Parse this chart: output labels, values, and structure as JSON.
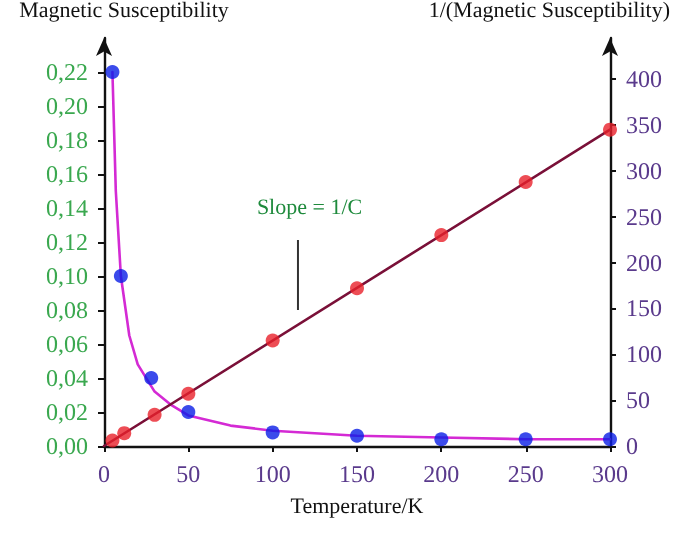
{
  "chart_data": {
    "type": "scatter",
    "xlabel": "Temperature/K",
    "ylabel": "Magnetic Susceptibility",
    "y2label": "1/(Magnetic Susceptibility)",
    "xlim": [
      0,
      300
    ],
    "xticks": [
      0,
      50,
      100,
      150,
      200,
      250,
      300
    ],
    "ylim": [
      0,
      0.24
    ],
    "yticks": [
      {
        "value": 0,
        "label": "0,00"
      },
      {
        "value": 0.02,
        "label": "0,02"
      },
      {
        "value": 0.04,
        "label": "0,04"
      },
      {
        "value": 0.06,
        "label": "0,06"
      },
      {
        "value": 0.08,
        "label": "0,08"
      },
      {
        "value": 0.1,
        "label": "0,10"
      },
      {
        "value": 0.12,
        "label": "0,12"
      },
      {
        "value": 0.14,
        "label": "0,14"
      },
      {
        "value": 0.16,
        "label": "0,16"
      },
      {
        "value": 0.18,
        "label": "0,18"
      },
      {
        "value": 0.2,
        "label": "0,20"
      },
      {
        "value": 0.22,
        "label": "0,22"
      }
    ],
    "y2lim": [
      0,
      445
    ],
    "y2ticks": [
      0,
      50,
      100,
      150,
      200,
      250,
      300,
      350,
      400
    ],
    "annotations": [
      "Slope = 1/C"
    ],
    "series": [
      {
        "type": "line",
        "marker": "none",
        "color": "#d42ad4",
        "x": [
          5,
          7,
          10,
          15,
          20,
          30,
          40,
          50,
          75,
          100,
          150,
          200,
          250,
          300
        ],
        "values": [
          0.22,
          0.15,
          0.1,
          0.065,
          0.048,
          0.032,
          0.024,
          0.018,
          0.012,
          0.009,
          0.006,
          0.005,
          0.004,
          0.004
        ]
      },
      {
        "type": "line",
        "marker": "none",
        "axis": "y2",
        "color": "#7a1038",
        "x": [
          0,
          300
        ],
        "values": [
          0,
          345
        ]
      },
      {
        "marker": "circle",
        "color": "#0a1ee6",
        "x": [
          5,
          10,
          28,
          50,
          100,
          150,
          200,
          250,
          300
        ],
        "values": [
          0.22,
          0.1,
          0.04,
          0.02,
          0.008,
          0.006,
          0.004,
          0.004,
          0.004
        ]
      },
      {
        "marker": "circle",
        "axis": "y2",
        "color": "#e8202a",
        "x": [
          5,
          12,
          30,
          50,
          100,
          150,
          200,
          250,
          300
        ],
        "values": [
          6,
          14,
          34,
          57,
          115,
          172,
          230,
          288,
          345
        ]
      }
    ]
  }
}
